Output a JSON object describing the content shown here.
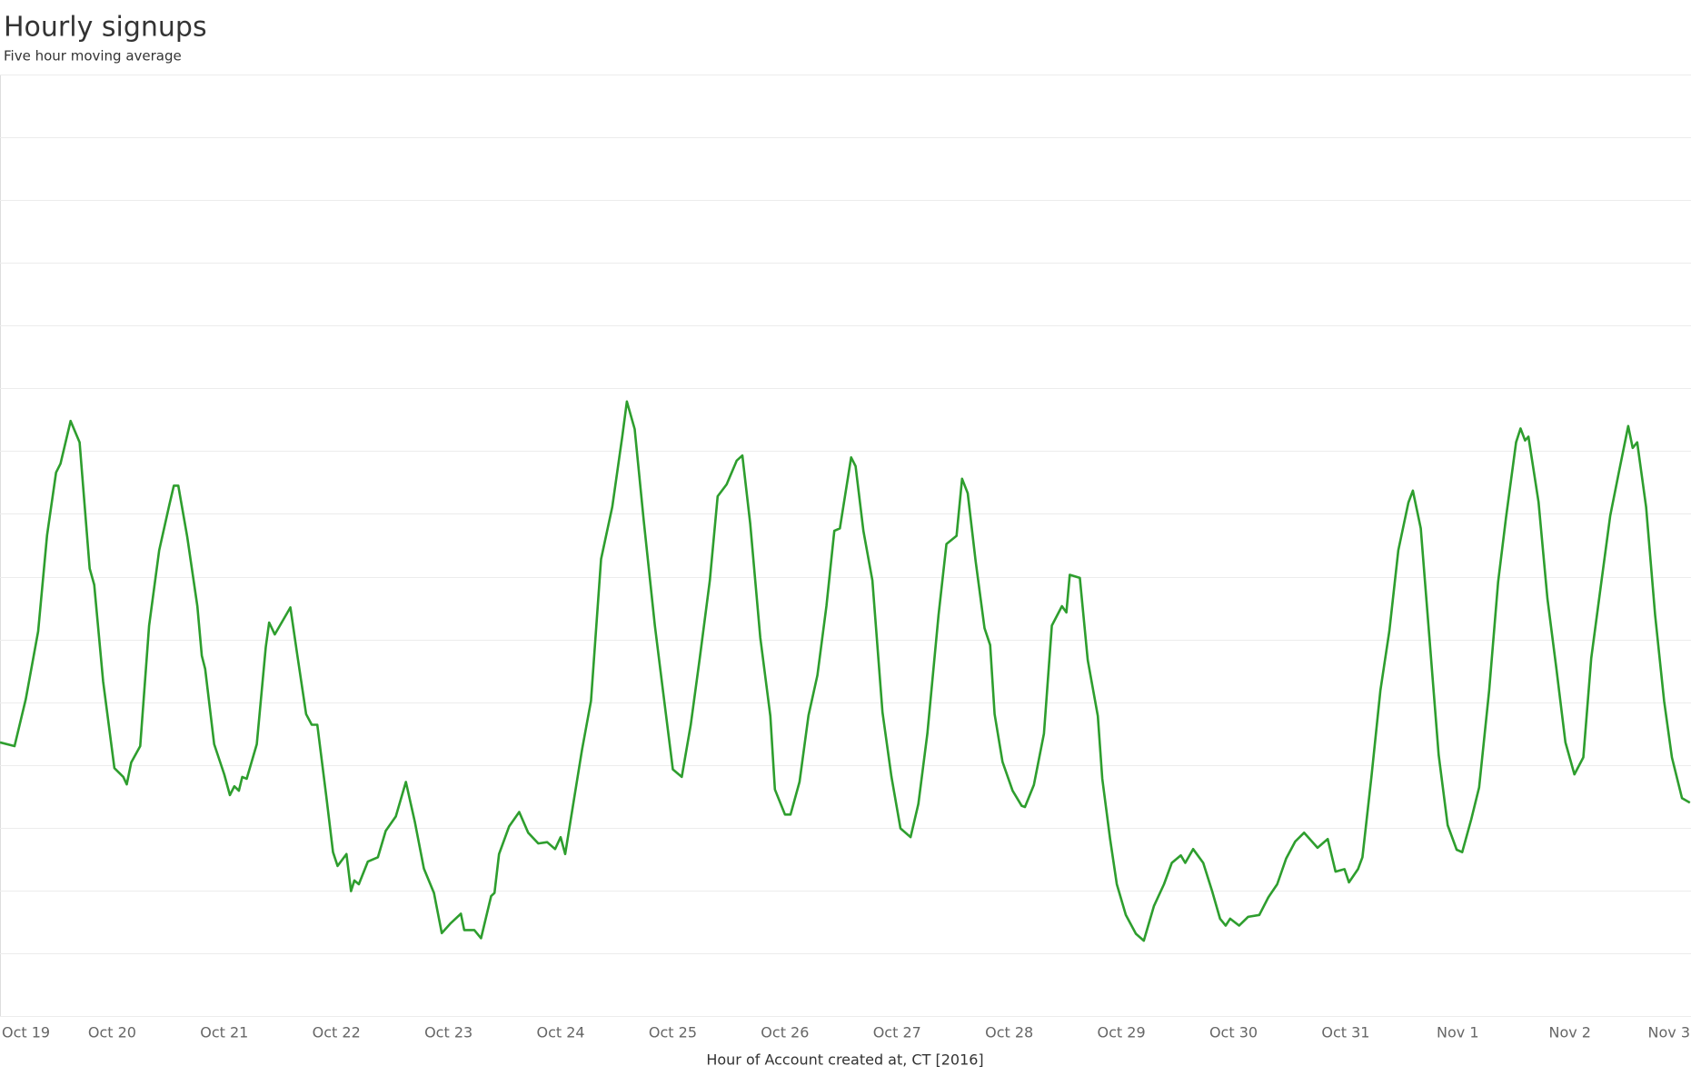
{
  "chart_data": {
    "type": "line",
    "title": "Hourly signups",
    "subtitle": "Five hour moving average",
    "x_label": "Hour of Account created at, CT [2016]",
    "color": "#2e9e2e",
    "grid": true,
    "xlim": [
      0,
      15.08
    ],
    "ylim": [
      0,
      15
    ],
    "yticks": [
      0,
      1,
      2,
      3,
      4,
      5,
      6,
      7,
      8,
      9,
      10,
      11,
      12,
      13,
      14,
      15
    ],
    "xticks": [
      {
        "value": 0,
        "label": "Oct 19"
      },
      {
        "value": 1,
        "label": "Oct 20"
      },
      {
        "value": 2,
        "label": "Oct 21"
      },
      {
        "value": 3,
        "label": "Oct 22"
      },
      {
        "value": 4,
        "label": "Oct 23"
      },
      {
        "value": 5,
        "label": "Oct 24"
      },
      {
        "value": 6,
        "label": "Oct 25"
      },
      {
        "value": 7,
        "label": "Oct 26"
      },
      {
        "value": 8,
        "label": "Oct 27"
      },
      {
        "value": 9,
        "label": "Oct 28"
      },
      {
        "value": 10,
        "label": "Oct 29"
      },
      {
        "value": 11,
        "label": "Oct 30"
      },
      {
        "value": 12,
        "label": "Oct 31"
      },
      {
        "value": 13,
        "label": "Nov 1"
      },
      {
        "value": 14,
        "label": "Nov 2"
      },
      {
        "value": 15,
        "label": "Nov 3"
      }
    ],
    "x": [
      0,
      0.13,
      0.23,
      0.34,
      0.42,
      0.5,
      0.54,
      0.63,
      0.71,
      0.8,
      0.84,
      0.92,
      1.02,
      1.1,
      1.13,
      1.17,
      1.25,
      1.33,
      1.42,
      1.51,
      1.55,
      1.59,
      1.67,
      1.76,
      1.8,
      1.83,
      1.91,
      2.0,
      2.05,
      2.09,
      2.13,
      2.16,
      2.2,
      2.29,
      2.37,
      2.4,
      2.45,
      2.59,
      2.63,
      2.65,
      2.73,
      2.78,
      2.83,
      2.91,
      2.97,
      3.01,
      3.09,
      3.13,
      3.16,
      3.2,
      3.28,
      3.37,
      3.44,
      3.53,
      3.62,
      3.7,
      3.78,
      3.87,
      3.94,
      4.02,
      4.11,
      4.14,
      4.23,
      4.29,
      4.38,
      4.41,
      4.45,
      4.54,
      4.63,
      4.71,
      4.8,
      4.88,
      4.95,
      5.0,
      5.04,
      5.12,
      5.19,
      5.27,
      5.36,
      5.46,
      5.55,
      5.59,
      5.66,
      5.74,
      5.84,
      5.91,
      6.0,
      6.08,
      6.16,
      6.24,
      6.33,
      6.4,
      6.48,
      6.57,
      6.62,
      6.69,
      6.78,
      6.87,
      6.91,
      7.0,
      7.05,
      7.13,
      7.21,
      7.29,
      7.37,
      7.44,
      7.49,
      7.59,
      7.63,
      7.7,
      7.78,
      7.87,
      7.95,
      8.03,
      8.12,
      8.19,
      8.27,
      8.37,
      8.44,
      8.53,
      8.58,
      8.63,
      8.7,
      8.78,
      8.83,
      8.87,
      8.94,
      9.03,
      9.11,
      9.14,
      9.22,
      9.31,
      9.38,
      9.47,
      9.51,
      9.54,
      9.63,
      9.7,
      9.79,
      9.83,
      9.9,
      9.96,
      10.04,
      10.13,
      10.2,
      10.29,
      10.38,
      10.45,
      10.53,
      10.57,
      10.64,
      10.73,
      10.81,
      10.88,
      10.93,
      10.97,
      11.05,
      11.13,
      11.23,
      11.31,
      11.39,
      11.47,
      11.55,
      11.63,
      11.75,
      11.84,
      11.91,
      11.99,
      12.03,
      12.11,
      12.15,
      12.23,
      12.31,
      12.39,
      12.47,
      12.56,
      12.6,
      12.67,
      12.75,
      12.83,
      12.91,
      12.99,
      13.04,
      13.12,
      13.19,
      13.28,
      13.36,
      13.43,
      13.52,
      13.56,
      13.6,
      13.63,
      13.72,
      13.8,
      13.88,
      13.96,
      14.04,
      14.12,
      14.19,
      14.28,
      14.36,
      14.44,
      14.52,
      14.56,
      14.6,
      14.68,
      14.76,
      14.84,
      14.91,
      15.0,
      15.07
    ],
    "values": [
      4.36,
      4.3,
      5.05,
      6.13,
      7.66,
      8.66,
      8.8,
      9.48,
      9.14,
      7.13,
      6.87,
      5.33,
      3.95,
      3.81,
      3.69,
      4.04,
      4.3,
      6.22,
      7.42,
      8.14,
      8.45,
      8.45,
      7.63,
      6.53,
      5.74,
      5.53,
      4.33,
      3.85,
      3.52,
      3.66,
      3.59,
      3.81,
      3.78,
      4.33,
      5.88,
      6.27,
      6.08,
      6.51,
      6.01,
      5.77,
      4.81,
      4.64,
      4.64,
      3.5,
      2.61,
      2.39,
      2.58,
      1.99,
      2.16,
      2.1,
      2.46,
      2.53,
      2.95,
      3.18,
      3.73,
      3.09,
      2.35,
      1.96,
      1.32,
      1.48,
      1.63,
      1.37,
      1.37,
      1.24,
      1.91,
      1.96,
      2.58,
      3.02,
      3.25,
      2.92,
      2.75,
      2.77,
      2.66,
      2.85,
      2.58,
      3.47,
      4.24,
      5.02,
      7.28,
      8.11,
      9.24,
      9.79,
      9.35,
      7.9,
      6.22,
      5.22,
      3.93,
      3.81,
      4.64,
      5.7,
      6.94,
      8.28,
      8.47,
      8.85,
      8.93,
      7.85,
      6.03,
      4.78,
      3.61,
      3.21,
      3.21,
      3.73,
      4.79,
      5.43,
      6.53,
      7.73,
      7.77,
      8.9,
      8.76,
      7.73,
      6.94,
      4.84,
      3.81,
      2.99,
      2.85,
      3.38,
      4.5,
      6.39,
      7.52,
      7.65,
      8.56,
      8.33,
      7.25,
      6.18,
      5.91,
      4.81,
      4.05,
      3.59,
      3.35,
      3.33,
      3.68,
      4.5,
      6.22,
      6.53,
      6.43,
      7.03,
      6.98,
      5.67,
      4.78,
      3.78,
      2.82,
      2.1,
      1.61,
      1.31,
      1.2,
      1.75,
      2.1,
      2.44,
      2.56,
      2.44,
      2.66,
      2.44,
      1.99,
      1.55,
      1.44,
      1.55,
      1.44,
      1.58,
      1.61,
      1.89,
      2.1,
      2.51,
      2.78,
      2.92,
      2.68,
      2.82,
      2.3,
      2.34,
      2.13,
      2.34,
      2.53,
      3.81,
      5.19,
      6.13,
      7.42,
      8.18,
      8.37,
      7.77,
      5.96,
      4.16,
      3.04,
      2.65,
      2.61,
      3.13,
      3.64,
      5.19,
      6.91,
      7.94,
      9.14,
      9.36,
      9.17,
      9.23,
      8.19,
      6.65,
      5.53,
      4.36,
      3.85,
      4.12,
      5.7,
      6.91,
      7.97,
      8.69,
      9.4,
      9.05,
      9.14,
      8.11,
      6.39,
      5.02,
      4.12,
      3.47,
      3.4
    ]
  }
}
